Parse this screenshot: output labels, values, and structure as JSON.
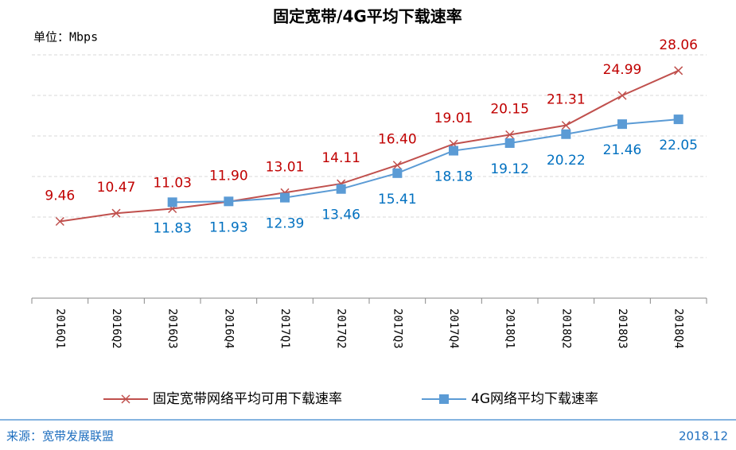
{
  "chart_data": {
    "type": "line",
    "title": "固定宽带/4G平均下载速率",
    "unit_label": "单位：Mbps",
    "categories": [
      "2016Q1",
      "2016Q2",
      "2016Q3",
      "2016Q4",
      "2017Q1",
      "2017Q2",
      "2017Q3",
      "2017Q4",
      "2018Q1",
      "2018Q2",
      "2018Q3",
      "2018Q4"
    ],
    "series": [
      {
        "name": "固定宽带网络平均可用下载速率",
        "color": "#c0504d",
        "label_color": "#c00000",
        "marker": "x",
        "values": [
          9.46,
          10.47,
          11.03,
          11.9,
          13.01,
          14.11,
          16.4,
          19.01,
          20.15,
          21.31,
          24.99,
          28.06
        ],
        "value_labels": [
          "9.46",
          "10.47",
          "11.03",
          "11.90",
          "13.01",
          "14.11",
          "16.40",
          "19.01",
          "20.15",
          "21.31",
          "24.99",
          "28.06"
        ]
      },
      {
        "name": "4G网络平均下载速率",
        "color": "#5b9bd5",
        "label_color": "#0070c0",
        "marker": "square",
        "values": [
          null,
          null,
          11.83,
          11.93,
          12.39,
          13.46,
          15.41,
          18.18,
          19.12,
          20.22,
          21.46,
          22.05
        ],
        "value_labels": [
          null,
          null,
          "11.83",
          "11.93",
          "12.39",
          "13.46",
          "15.41",
          "18.18",
          "19.12",
          "20.22",
          "21.46",
          "22.05"
        ]
      }
    ],
    "ylim": [
      0,
      35
    ],
    "yticks": [
      5,
      10,
      15,
      20,
      25,
      30
    ],
    "grid": true,
    "legend": "bottom"
  },
  "footer": {
    "source": "来源：宽带发展联盟",
    "date": "2018.12"
  }
}
